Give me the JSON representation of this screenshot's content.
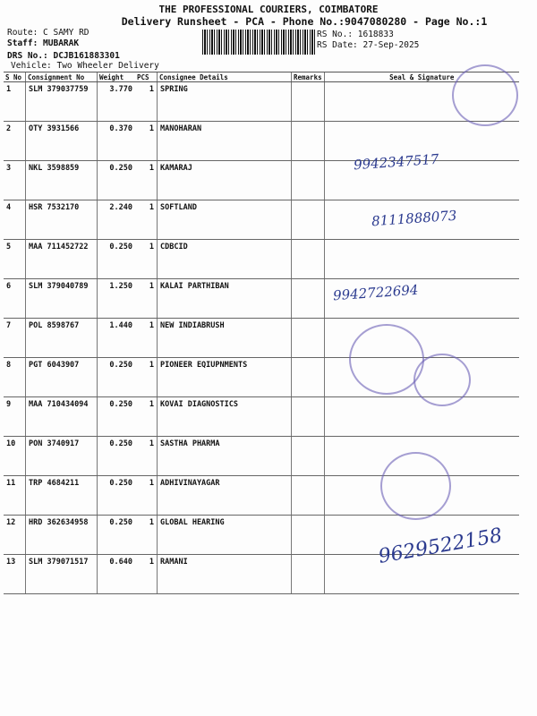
{
  "header": {
    "company": "THE PROFESSIONAL COURIERS, COIMBATORE",
    "subtitle": "Delivery Runsheet - PCA - Phone No.:9047080280 - Page No.:1",
    "route": "Route: C SAMY RD",
    "staff": "Staff: MUBARAK",
    "drs": "DRS No.: DCJB161883301",
    "vehicle": "Vehicle: Two Wheeler Delivery",
    "rs_no": "RS No.: 1618833",
    "rs_date": "RS Date: 27-Sep-2025"
  },
  "columns": [
    "S No",
    "Consignment No",
    "Weight",
    "PCS",
    "Consignee Details",
    "Remarks",
    "Seal & Signature"
  ],
  "rows": [
    {
      "sno": "1",
      "cn": "SLM 379037759",
      "wt": "3.770",
      "pcs": "1",
      "name": "SPRING"
    },
    {
      "sno": "2",
      "cn": "OTY 3931566",
      "wt": "0.370",
      "pcs": "1",
      "name": "MANOHARAN"
    },
    {
      "sno": "3",
      "cn": "NKL 3598859",
      "wt": "0.250",
      "pcs": "1",
      "name": "KAMARAJ"
    },
    {
      "sno": "4",
      "cn": "HSR 7532170",
      "wt": "2.240",
      "pcs": "1",
      "name": "SOFTLAND"
    },
    {
      "sno": "5",
      "cn": "MAA 711452722",
      "wt": "0.250",
      "pcs": "1",
      "name": "CDBCID"
    },
    {
      "sno": "6",
      "cn": "SLM 379040789",
      "wt": "1.250",
      "pcs": "1",
      "name": "KALAI PARTHIBAN"
    },
    {
      "sno": "7",
      "cn": "POL 8598767",
      "wt": "1.440",
      "pcs": "1",
      "name": "NEW INDIABRUSH"
    },
    {
      "sno": "8",
      "cn": "PGT 6043907",
      "wt": "0.250",
      "pcs": "1",
      "name": "PIONEER EQIUPNMENTS"
    },
    {
      "sno": "9",
      "cn": "MAA 710434094",
      "wt": "0.250",
      "pcs": "1",
      "name": "KOVAI DIAGNOSTICS"
    },
    {
      "sno": "10",
      "cn": "PON 3740917",
      "wt": "0.250",
      "pcs": "1",
      "name": "SASTHA PHARMA"
    },
    {
      "sno": "11",
      "cn": "TRP 4684211",
      "wt": "0.250",
      "pcs": "1",
      "name": "ADHIVINAYAGAR"
    },
    {
      "sno": "12",
      "cn": "HRD 362634958",
      "wt": "0.250",
      "pcs": "1",
      "name": "GLOBAL HEARING"
    },
    {
      "sno": "13",
      "cn": "SLM 379071517",
      "wt": "0.640",
      "pcs": "1",
      "name": "RAMANI"
    }
  ],
  "handwriting": [
    "9942347517",
    "8111888073",
    "9942722694",
    "9629522158"
  ],
  "ink_color": "#2b3a8f"
}
